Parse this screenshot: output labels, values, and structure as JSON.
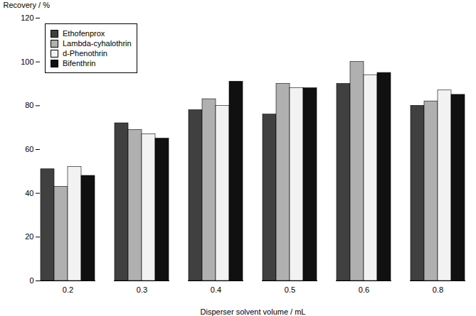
{
  "chart_data": {
    "type": "bar",
    "categories": [
      "0.2",
      "0.3",
      "0.4",
      "0.5",
      "0.6",
      "0.8"
    ],
    "series": [
      {
        "name": "Ethofenprox",
        "color": "#404040",
        "values": [
          51,
          72,
          78,
          76,
          90,
          80
        ]
      },
      {
        "name": "Lambda-cyhalothrin",
        "color": "#b0b0b0",
        "values": [
          43,
          69,
          83,
          90,
          100,
          82
        ]
      },
      {
        "name": "d-Phenothrin",
        "color": "#f2f2f2",
        "values": [
          52,
          67,
          80,
          88,
          94,
          87
        ]
      },
      {
        "name": "Bifenthrin",
        "color": "#101010",
        "values": [
          48,
          65,
          91,
          88,
          95,
          85
        ]
      }
    ],
    "xlabel": "Disperser solvent volume / mL",
    "ylabel": "Recovery / %",
    "ylim": [
      0,
      120
    ],
    "yticks": [
      0,
      20,
      40,
      60,
      80,
      100,
      120
    ],
    "legend": "upper left"
  }
}
